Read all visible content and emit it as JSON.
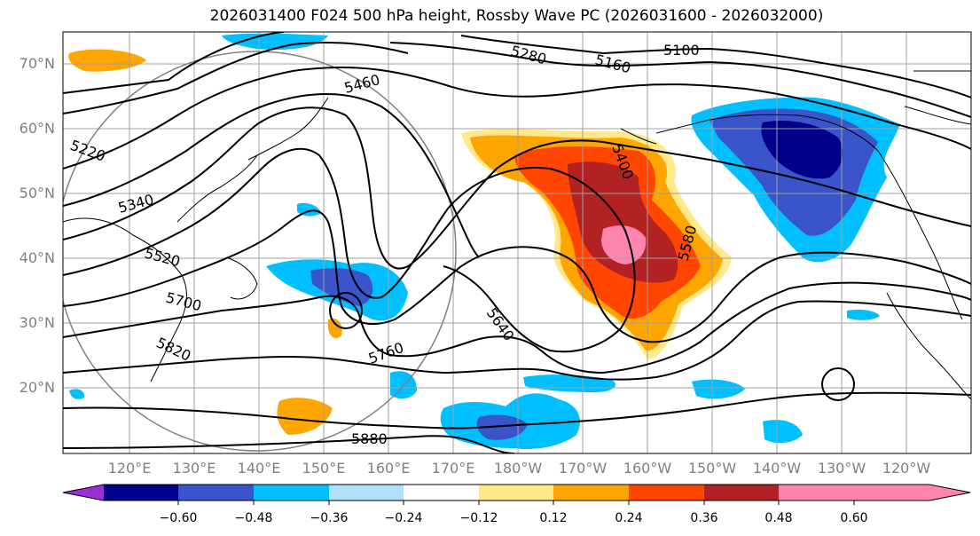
{
  "title": "2026031400 F024 500 hPa height, Rossby Wave PC (2026031600 - 2026032000)",
  "lat_ticks": [
    "70°N",
    "60°N",
    "50°N",
    "40°N",
    "30°N",
    "20°N"
  ],
  "lon_ticks": [
    "120°E",
    "130°E",
    "140°E",
    "150°E",
    "160°E",
    "170°E",
    "180°W",
    "170°W",
    "160°W",
    "150°W",
    "140°W",
    "130°W",
    "120°W"
  ],
  "colorbar": {
    "ticks": [
      "−0.60",
      "−0.48",
      "−0.36",
      "−0.24",
      "−0.12",
      "0.12",
      "0.24",
      "0.36",
      "0.48",
      "0.60"
    ],
    "colors": [
      "#9a2fd6",
      "#00008b",
      "#3a55c9",
      "#00bfff",
      "#b0e0fa",
      "#ffffff",
      "#ffe98a",
      "#ffa500",
      "#ff4500",
      "#b22222",
      "#ff85b0"
    ]
  },
  "contour_labels": [
    "5100",
    "5160",
    "5220",
    "5280",
    "5340",
    "5400",
    "5460",
    "5520",
    "5580",
    "5640",
    "5700",
    "5760",
    "5820",
    "5880"
  ]
}
